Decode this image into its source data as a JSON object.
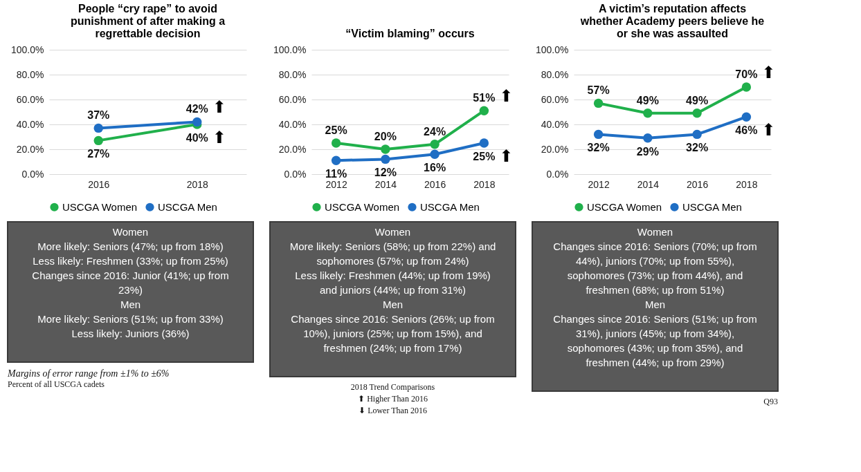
{
  "chart_data": [
    {
      "type": "line",
      "title": "People “cry rape” to avoid punishment of after making a regrettable decision",
      "categories": [
        "2016",
        "2018"
      ],
      "series": [
        {
          "name": "USCGA Women",
          "color": "#20b04b",
          "values": [
            27,
            40
          ],
          "value_labels": [
            "27%",
            "40%"
          ]
        },
        {
          "name": "USCGA Men",
          "color": "#1f6ec4",
          "values": [
            37,
            42
          ],
          "value_labels": [
            "37%",
            "42%"
          ]
        }
      ],
      "ylim": [
        0,
        100
      ],
      "yticks": [
        {
          "value": 0,
          "label": "0.0%"
        },
        {
          "value": 20,
          "label": "20.0%"
        },
        {
          "value": 40,
          "label": "40.0%"
        },
        {
          "value": 60,
          "label": "60.0%"
        },
        {
          "value": 80,
          "label": "80.0%"
        },
        {
          "value": 100,
          "label": "100.0%"
        }
      ],
      "grid": "y",
      "legend": "bottom",
      "marker": "circle",
      "line_style": "solid",
      "annotations": [
        "Women\nMore likely:  Seniors (47%; up from 18%)\nLess likely:  Freshmen (33%; up from 25%)\nChanges since 2016: Junior (41%; up from\n23%)\n\nMen\nMore likely:  Seniors (51%; up from 33%)\nLess likely:  Juniors (36%)",
        "Margins of error range from ±1% to ±6%",
        "Percent of all USCGA cadets",
        {
          "text": "⬆",
          "x": "2018",
          "y": 42
        },
        {
          "text": "⬆",
          "x": "2018",
          "y": 40
        }
      ]
    },
    {
      "type": "line",
      "title": "“Victim blaming” occurs",
      "categories": [
        "2012",
        "2014",
        "2016",
        "2018"
      ],
      "series": [
        {
          "name": "USCGA Women",
          "color": "#20b04b",
          "values": [
            25,
            20,
            24,
            51
          ],
          "value_labels": [
            "25%",
            "20%",
            "24%",
            "51%"
          ]
        },
        {
          "name": "USCGA Men",
          "color": "#1f6ec4",
          "values": [
            11,
            12,
            16,
            25
          ],
          "value_labels": [
            "11%",
            "12%",
            "16%",
            "25%"
          ]
        }
      ],
      "ylim": [
        0,
        100
      ],
      "yticks": [
        {
          "value": 0,
          "label": "0.0%"
        },
        {
          "value": 20,
          "label": "20.0%"
        },
        {
          "value": 40,
          "label": "40.0%"
        },
        {
          "value": 60,
          "label": "60.0%"
        },
        {
          "value": 80,
          "label": "80.0%"
        },
        {
          "value": 100,
          "label": "100.0%"
        }
      ],
      "grid": "y",
      "legend": "bottom",
      "marker": "circle",
      "line_style": "solid",
      "annotations": [
        "Women\nMore likely:  Seniors (58%; up from 22%) and\nsophomores (57%; up from 24%)\nLess likely:  Freshmen (44%; up from 19%)\nand juniors (44%; up from 31%)\n\nMen\nChanges since 2016: Seniors (26%; up from\n10%), juniors (25%; up from 15%), and\nfreshmen (24%; up from 17%)",
        "2018 Trend Comparisons",
        "⬆ Higher Than 2016",
        "⬇ Lower Than 2016",
        {
          "text": "⬆",
          "x": "2018",
          "y": 51
        },
        {
          "text": "⬆",
          "x": "2018",
          "y": 25
        }
      ]
    },
    {
      "type": "line",
      "title": "A victim’s reputation affects whether Academy peers believe he or she was assaulted",
      "categories": [
        "2012",
        "2014",
        "2016",
        "2018"
      ],
      "series": [
        {
          "name": "USCGA Women",
          "color": "#20b04b",
          "values": [
            57,
            49,
            49,
            70
          ],
          "value_labels": [
            "57%",
            "49%",
            "49%",
            "70%"
          ]
        },
        {
          "name": "USCGA Men",
          "color": "#1f6ec4",
          "values": [
            32,
            29,
            32,
            46
          ],
          "value_labels": [
            "32%",
            "29%",
            "32%",
            "46%"
          ]
        }
      ],
      "ylim": [
        0,
        100
      ],
      "yticks": [
        {
          "value": 0,
          "label": "0.0%"
        },
        {
          "value": 20,
          "label": "20.0%"
        },
        {
          "value": 40,
          "label": "40.0%"
        },
        {
          "value": 60,
          "label": "60.0%"
        },
        {
          "value": 80,
          "label": "80.0%"
        },
        {
          "value": 100,
          "label": "100.0%"
        }
      ],
      "grid": "y",
      "legend": "bottom",
      "marker": "circle",
      "line_style": "solid",
      "annotations": [
        "Women\nChanges since 2016: Seniors (70%; up from\n44%), juniors (70%; up from 55%),\nsophomores (73%; up from 44%), and\nfreshmen (68%; up from 51%)\n\nMen\nChanges since 2016: Seniors (51%; up from\n31%), juniors (45%; up from 34%),\nsophomores (43%; up from 35%), and\nfreshmen (44%; up from 29%)",
        "Q93",
        {
          "text": "⬆",
          "x": "2018",
          "y": 70
        },
        {
          "text": "⬆",
          "x": "2018",
          "y": 46
        }
      ]
    }
  ]
}
